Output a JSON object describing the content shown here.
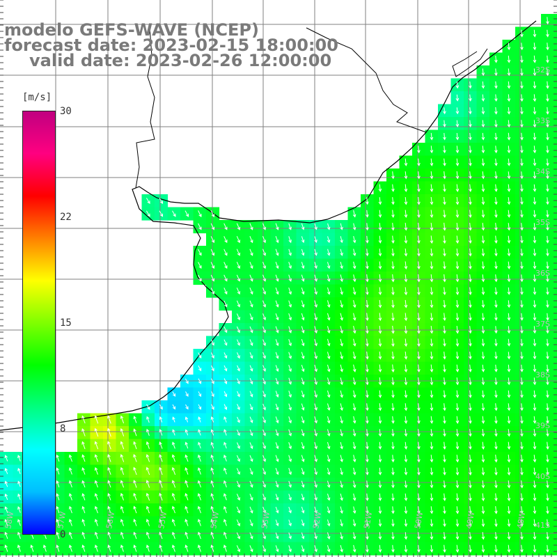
{
  "title": {
    "line1": "modelo GEFS-WAVE (NCEP)",
    "line2": "forecast date: 2023-02-15 18:00:00",
    "line3": "valid date: 2023-02-26 12:00:00"
  },
  "legend": {
    "unit": "[m/s]",
    "ticks": [
      "30",
      "22",
      "15",
      "8",
      "0"
    ],
    "scale_max": 30,
    "colors": [
      "#0000ff",
      "#00bfff",
      "#00ffff",
      "#00ff80",
      "#00ff00",
      "#80ff00",
      "#ffff00",
      "#ff8000",
      "#ff0000",
      "#ff0080",
      "#c00080"
    ]
  },
  "axes": {
    "lat_labels": [
      "32S",
      "33S",
      "34S",
      "35S",
      "36S",
      "37S",
      "38S",
      "39S",
      "40S",
      "41S"
    ],
    "lon_labels": [
      "58W",
      "57W",
      "56W",
      "55W",
      "54W",
      "53W",
      "52W",
      "51W",
      "50W",
      "49W",
      "48W"
    ]
  },
  "colors": {
    "grid": "#7f7f7f",
    "coast": "#000000",
    "arrows": "#ffffff"
  }
}
